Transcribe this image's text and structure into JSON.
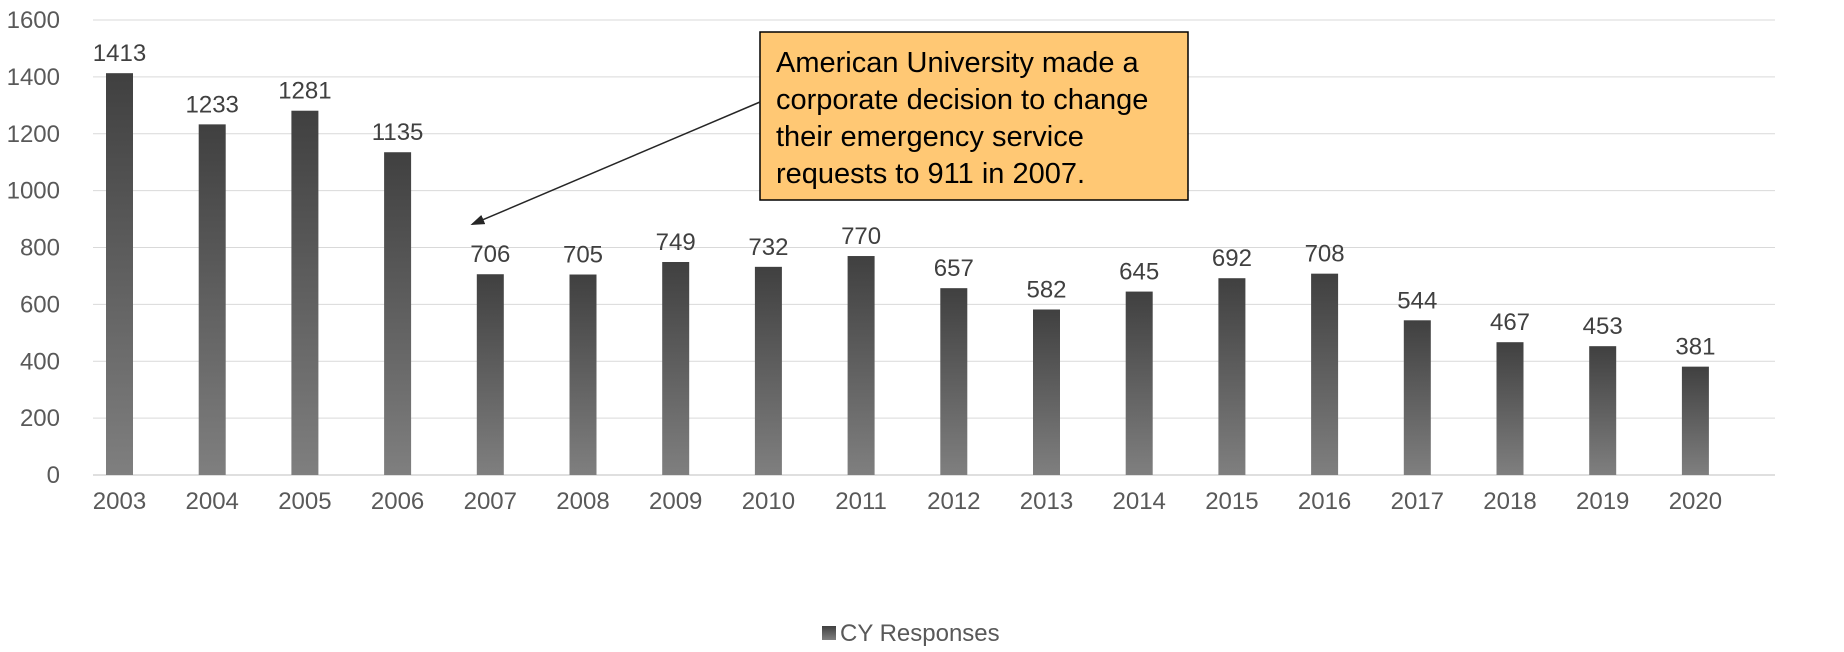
{
  "chart_data": {
    "type": "bar",
    "categories": [
      "2003",
      "2004",
      "2005",
      "2006",
      "2007",
      "2008",
      "2009",
      "2010",
      "2011",
      "2012",
      "2013",
      "2014",
      "2015",
      "2016",
      "2017",
      "2018",
      "2019",
      "2020"
    ],
    "series": [
      {
        "name": "CY Responses",
        "values": [
          1413,
          1233,
          1281,
          1135,
          706,
          705,
          749,
          732,
          770,
          657,
          582,
          645,
          692,
          708,
          544,
          467,
          453,
          381
        ]
      }
    ],
    "ylim": [
      0,
      1600
    ],
    "yticks": [
      0,
      200,
      400,
      600,
      800,
      1000,
      1200,
      1400,
      1600
    ],
    "grid": true,
    "legend_position": "bottom",
    "bar_color_top": "#404040",
    "bar_color_bottom": "#7f7f7f",
    "annotation": {
      "lines": [
        "American University made a",
        "corporate decision to change",
        "their emergency service",
        "requests to 911 in 2007."
      ],
      "target_category": "2007",
      "box_color": "#ffc874"
    }
  }
}
